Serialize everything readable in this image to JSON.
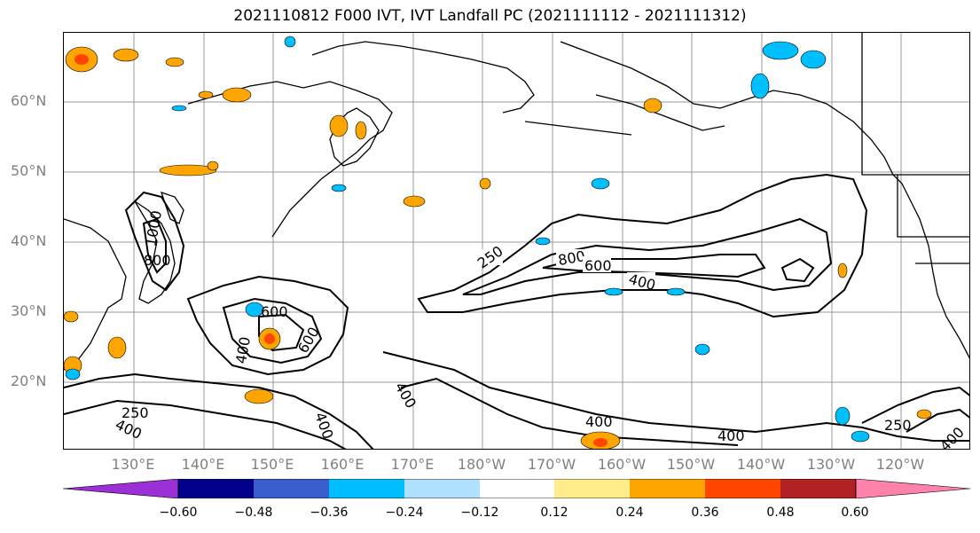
{
  "title": "2021110812 F000 IVT, IVT Landfall PC (2021111112 - 2021111312)",
  "lat_labels": [
    "60°N",
    "50°N",
    "40°N",
    "30°N",
    "20°N"
  ],
  "lon_labels": [
    "130°E",
    "140°E",
    "150°E",
    "160°E",
    "170°E",
    "180°W",
    "170°W",
    "160°W",
    "150°W",
    "140°W",
    "130°W",
    "120°W"
  ],
  "contour_labels": [
    "250",
    "800",
    "600",
    "400",
    "1000",
    "800",
    "600",
    "600",
    "400",
    "400",
    "400",
    "400",
    "400",
    "250",
    "400",
    "250",
    "400"
  ],
  "colorbar": {
    "ticks": [
      "−0.60",
      "−0.48",
      "−0.36",
      "−0.24",
      "−0.12",
      "0.12",
      "0.24",
      "0.36",
      "0.48",
      "0.60"
    ],
    "colors": [
      "#9b30d6",
      "#00008b",
      "#3a5fcd",
      "#00bfff",
      "#b0e2ff",
      "#ffffff",
      "#ffec8b",
      "#ffa500",
      "#ff4500",
      "#b22222",
      "#ff82ab"
    ]
  }
}
